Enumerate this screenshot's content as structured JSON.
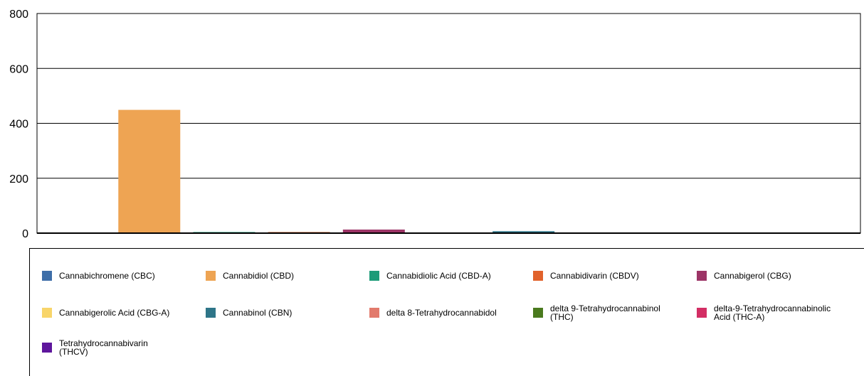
{
  "chart_data": {
    "type": "bar",
    "title": "",
    "xlabel": "",
    "ylabel": "",
    "ylim": [
      0,
      800
    ],
    "yticks": [
      0,
      200,
      400,
      600,
      800
    ],
    "grid": true,
    "legend_position": "bottom",
    "series": [
      {
        "name": "Cannabichromene (CBC)",
        "value": 1,
        "color": "#3e6ea8"
      },
      {
        "name": "Cannabidiol (CBD)",
        "value": 449,
        "color": "#eea453"
      },
      {
        "name": "Cannabidiolic Acid (CBD-A)",
        "value": 4,
        "color": "#1c9b78"
      },
      {
        "name": "Cannabidivarin (CBDV)",
        "value": 4,
        "color": "#e1622b"
      },
      {
        "name": "Cannabigerol (CBG)",
        "value": 13,
        "color": "#9c3466"
      },
      {
        "name": "Cannabigerolic Acid (CBG-A)",
        "value": 0,
        "color": "#f8d56a"
      },
      {
        "name": "Cannabinol (CBN)",
        "value": 7,
        "color": "#2e7588"
      },
      {
        "name": "delta 8-Tetrahydrocannabidol",
        "value": 0,
        "color": "#e27a6c"
      },
      {
        "name": "delta 9-Tetrahydrocannabinol (THC)",
        "value": 0,
        "color": "#4a7a1e"
      },
      {
        "name": "delta-9-Tetrahydrocannabinolic Acid (THC-A)",
        "value": 0,
        "color": "#d32e64"
      },
      {
        "name": "Tetrahydrocannabivarin (THCV)",
        "value": 0,
        "color": "#5e169c"
      }
    ]
  },
  "legend_labels": [
    "Cannabichromene (CBC)",
    "Cannabidiol (CBD)",
    "Cannabidiolic Acid (CBD-A)",
    "Cannabidivarin (CBDV)",
    "Cannabigerol (CBG)",
    "Cannabigerolic Acid (CBG-A)",
    "Cannabinol (CBN)",
    "delta 8-Tetrahydrocannabidol",
    "delta 9-Tetrahydrocannabinol\n(THC)",
    "delta-9-Tetrahydrocannabinolic\nAcid (THC-A)",
    "Tetrahydrocannabivarin\n(THCV)"
  ]
}
